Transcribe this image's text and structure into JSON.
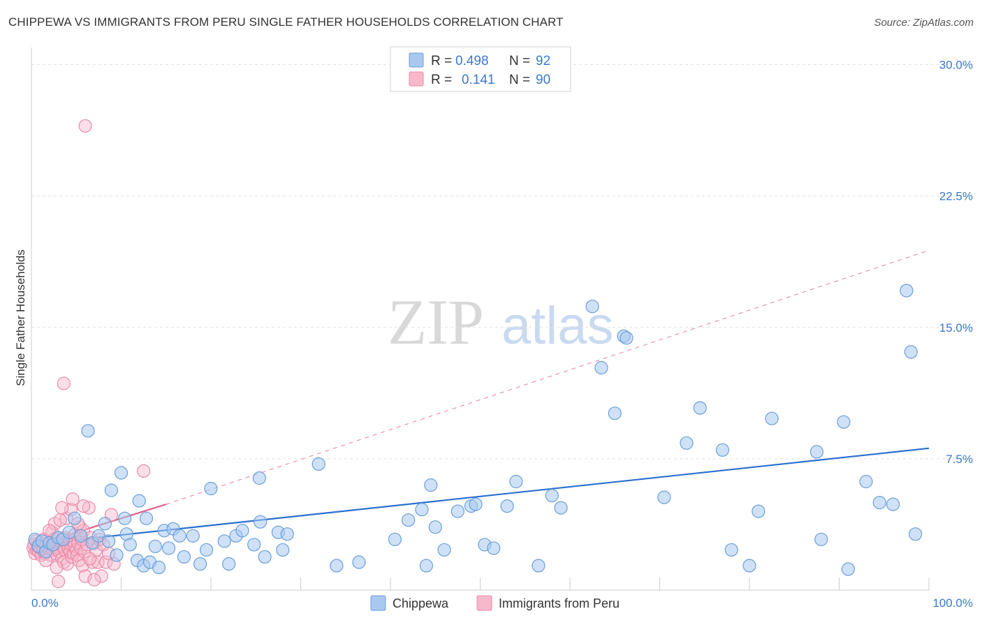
{
  "title": "CHIPPEWA VS IMMIGRANTS FROM PERU SINGLE FATHER HOUSEHOLDS CORRELATION CHART",
  "source": "Source: ZipAtlas.com",
  "watermark": {
    "zip": "ZIP",
    "atlas": "atlas"
  },
  "legend": {
    "r_label": "R =",
    "n_label": "N =",
    "rows": [
      {
        "name": "Chippewa",
        "r": "0.498",
        "n": "92"
      },
      {
        "name": "Immigrants from Peru",
        "r": "0.141",
        "n": "90"
      }
    ]
  },
  "colors": {
    "chippewa_fill": "#a8c8f0",
    "chippewa_stroke": "#6a9fd8",
    "chippewa_line": "#2b6fd0",
    "peru_fill": "#f7b8cb",
    "peru_stroke": "#e98aa8",
    "peru_line": "#e0628a"
  },
  "chart_data": {
    "type": "scatter",
    "title": "CHIPPEWA VS IMMIGRANTS FROM PERU SINGLE FATHER HOUSEHOLDS CORRELATION CHART",
    "xlabel": "",
    "ylabel": "Single Father Households",
    "xlim": [
      0,
      100
    ],
    "ylim": [
      0,
      30.5
    ],
    "x_tick_labels": [
      "0.0%",
      "100.0%"
    ],
    "y_ticks": [
      7.5,
      15.0,
      22.5,
      30.0
    ],
    "y_tick_labels": [
      "7.5%",
      "15.0%",
      "22.5%",
      "30.0%"
    ],
    "grid": true,
    "series": [
      {
        "name": "Chippewa",
        "r": 0.498,
        "n": 92,
        "trend": {
          "x": [
            0,
            100
          ],
          "y": [
            2.6,
            8.1
          ],
          "style": "solid"
        },
        "points": [
          [
            0.4,
            2.9
          ],
          [
            0.8,
            2.5
          ],
          [
            1.2,
            2.8
          ],
          [
            1.6,
            2.2
          ],
          [
            2.0,
            2.7
          ],
          [
            2.4,
            2.6
          ],
          [
            3.0,
            3.0
          ],
          [
            3.5,
            2.9
          ],
          [
            4.2,
            3.3
          ],
          [
            4.8,
            4.1
          ],
          [
            5.5,
            3.1
          ],
          [
            6.3,
            9.1
          ],
          [
            6.8,
            2.7
          ],
          [
            7.5,
            3.1
          ],
          [
            8.2,
            3.8
          ],
          [
            8.6,
            2.8
          ],
          [
            8.9,
            5.7
          ],
          [
            9.5,
            2.0
          ],
          [
            10.0,
            6.7
          ],
          [
            10.4,
            4.1
          ],
          [
            10.6,
            3.2
          ],
          [
            11.0,
            2.6
          ],
          [
            11.8,
            1.7
          ],
          [
            12.0,
            5.1
          ],
          [
            12.5,
            1.4
          ],
          [
            12.8,
            4.1
          ],
          [
            13.2,
            1.6
          ],
          [
            13.8,
            2.5
          ],
          [
            14.2,
            1.3
          ],
          [
            14.8,
            3.4
          ],
          [
            15.3,
            2.4
          ],
          [
            15.8,
            3.5
          ],
          [
            16.5,
            3.1
          ],
          [
            17.0,
            1.9
          ],
          [
            18.0,
            3.1
          ],
          [
            18.8,
            1.5
          ],
          [
            19.5,
            2.3
          ],
          [
            20.0,
            5.8
          ],
          [
            21.5,
            2.8
          ],
          [
            22.0,
            1.5
          ],
          [
            22.8,
            3.1
          ],
          [
            23.5,
            3.4
          ],
          [
            24.8,
            2.6
          ],
          [
            25.4,
            6.4
          ],
          [
            25.5,
            3.9
          ],
          [
            26.0,
            1.9
          ],
          [
            27.5,
            3.3
          ],
          [
            28.0,
            2.3
          ],
          [
            32.0,
            7.2
          ],
          [
            28.5,
            3.2
          ],
          [
            34.0,
            1.4
          ],
          [
            36.5,
            1.6
          ],
          [
            40.5,
            2.9
          ],
          [
            42.0,
            4.0
          ],
          [
            43.5,
            4.6
          ],
          [
            44.0,
            1.4
          ],
          [
            44.5,
            6.0
          ],
          [
            45.0,
            3.6
          ],
          [
            46.0,
            2.3
          ],
          [
            47.5,
            4.5
          ],
          [
            49.0,
            4.8
          ],
          [
            49.5,
            4.9
          ],
          [
            50.5,
            2.6
          ],
          [
            51.5,
            2.4
          ],
          [
            53.0,
            4.8
          ],
          [
            54.0,
            6.2
          ],
          [
            56.5,
            1.4
          ],
          [
            58.0,
            5.4
          ],
          [
            59.0,
            4.7
          ],
          [
            62.5,
            16.2
          ],
          [
            63.5,
            12.7
          ],
          [
            65.0,
            10.1
          ],
          [
            66.0,
            14.5
          ],
          [
            66.3,
            14.4
          ],
          [
            70.5,
            5.3
          ],
          [
            73.0,
            8.4
          ],
          [
            74.5,
            10.4
          ],
          [
            77.0,
            8.0
          ],
          [
            78.0,
            2.3
          ],
          [
            80.0,
            1.4
          ],
          [
            81.0,
            4.5
          ],
          [
            82.5,
            9.8
          ],
          [
            87.5,
            7.9
          ],
          [
            88.0,
            2.9
          ],
          [
            90.5,
            9.6
          ],
          [
            91.0,
            1.2
          ],
          [
            93.0,
            6.2
          ],
          [
            94.5,
            5.0
          ],
          [
            96.0,
            4.9
          ],
          [
            97.5,
            17.1
          ],
          [
            98.0,
            13.6
          ],
          [
            98.5,
            3.2
          ]
        ]
      },
      {
        "name": "Immigrants from Peru",
        "r": 0.141,
        "n": 90,
        "trend": {
          "x": [
            0,
            15
          ],
          "y": [
            2.5,
            4.9
          ],
          "style": "solid",
          "extended": {
            "x": [
              15,
              100
            ],
            "y": [
              4.9,
              19.4
            ],
            "style": "dashed"
          }
        },
        "points": [
          [
            0.2,
            2.4
          ],
          [
            0.3,
            2.6
          ],
          [
            0.4,
            2.1
          ],
          [
            0.5,
            2.8
          ],
          [
            0.6,
            2.3
          ],
          [
            0.7,
            2.5
          ],
          [
            0.8,
            2.2
          ],
          [
            0.9,
            2.7
          ],
          [
            1.0,
            2.4
          ],
          [
            1.1,
            2.0
          ],
          [
            1.2,
            2.6
          ],
          [
            1.3,
            2.3
          ],
          [
            1.4,
            2.9
          ],
          [
            1.5,
            2.1
          ],
          [
            1.6,
            2.5
          ],
          [
            1.7,
            2.8
          ],
          [
            1.8,
            2.2
          ],
          [
            1.9,
            2.4
          ],
          [
            2.0,
            2.7
          ],
          [
            2.1,
            2.0
          ],
          [
            2.2,
            2.6
          ],
          [
            2.3,
            3.3
          ],
          [
            2.4,
            2.3
          ],
          [
            2.5,
            2.9
          ],
          [
            2.6,
            2.5
          ],
          [
            2.7,
            2.1
          ],
          [
            2.8,
            3.0
          ],
          [
            2.9,
            2.4
          ],
          [
            3.0,
            2.7
          ],
          [
            3.1,
            2.2
          ],
          [
            3.2,
            2.6
          ],
          [
            3.3,
            2.8
          ],
          [
            3.4,
            1.8
          ],
          [
            3.5,
            2.5
          ],
          [
            3.6,
            1.6
          ],
          [
            3.7,
            2.3
          ],
          [
            3.8,
            3.0
          ],
          [
            3.9,
            2.7
          ],
          [
            4.0,
            1.5
          ],
          [
            4.1,
            2.4
          ],
          [
            4.2,
            2.9
          ],
          [
            4.3,
            2.2
          ],
          [
            4.4,
            2.6
          ],
          [
            4.5,
            1.9
          ],
          [
            4.6,
            2.8
          ],
          [
            4.7,
            2.1
          ],
          [
            4.8,
            2.5
          ],
          [
            4.9,
            3.2
          ],
          [
            5.0,
            2.3
          ],
          [
            5.1,
            2.0
          ],
          [
            5.2,
            2.7
          ],
          [
            5.3,
            1.7
          ],
          [
            5.4,
            3.6
          ],
          [
            5.5,
            2.4
          ],
          [
            5.6,
            2.9
          ],
          [
            5.7,
            1.4
          ],
          [
            5.8,
            3.4
          ],
          [
            5.9,
            2.2
          ],
          [
            6.0,
            0.8
          ],
          [
            6.2,
            2.6
          ],
          [
            6.4,
            4.7
          ],
          [
            6.6,
            3.0
          ],
          [
            6.8,
            1.6
          ],
          [
            7.0,
            2.7
          ],
          [
            7.2,
            2.3
          ],
          [
            7.4,
            1.6
          ],
          [
            7.6,
            2.9
          ],
          [
            7.8,
            0.8
          ],
          [
            8.0,
            2.6
          ],
          [
            8.3,
            1.6
          ],
          [
            8.6,
            2.1
          ],
          [
            8.9,
            4.3
          ],
          [
            9.2,
            1.5
          ],
          [
            3.6,
            11.8
          ],
          [
            3.9,
            4.1
          ],
          [
            4.4,
            4.6
          ],
          [
            5.2,
            3.8
          ],
          [
            2.6,
            3.8
          ],
          [
            3.2,
            4.0
          ],
          [
            3.0,
            0.5
          ],
          [
            2.8,
            1.3
          ],
          [
            4.6,
            5.2
          ],
          [
            5.8,
            4.8
          ],
          [
            7.0,
            0.6
          ],
          [
            6.5,
            1.8
          ],
          [
            2.0,
            3.4
          ],
          [
            1.6,
            1.7
          ],
          [
            12.5,
            6.8
          ],
          [
            6.0,
            26.5
          ],
          [
            3.4,
            4.7
          ]
        ]
      }
    ],
    "legend_position": "top-center"
  }
}
